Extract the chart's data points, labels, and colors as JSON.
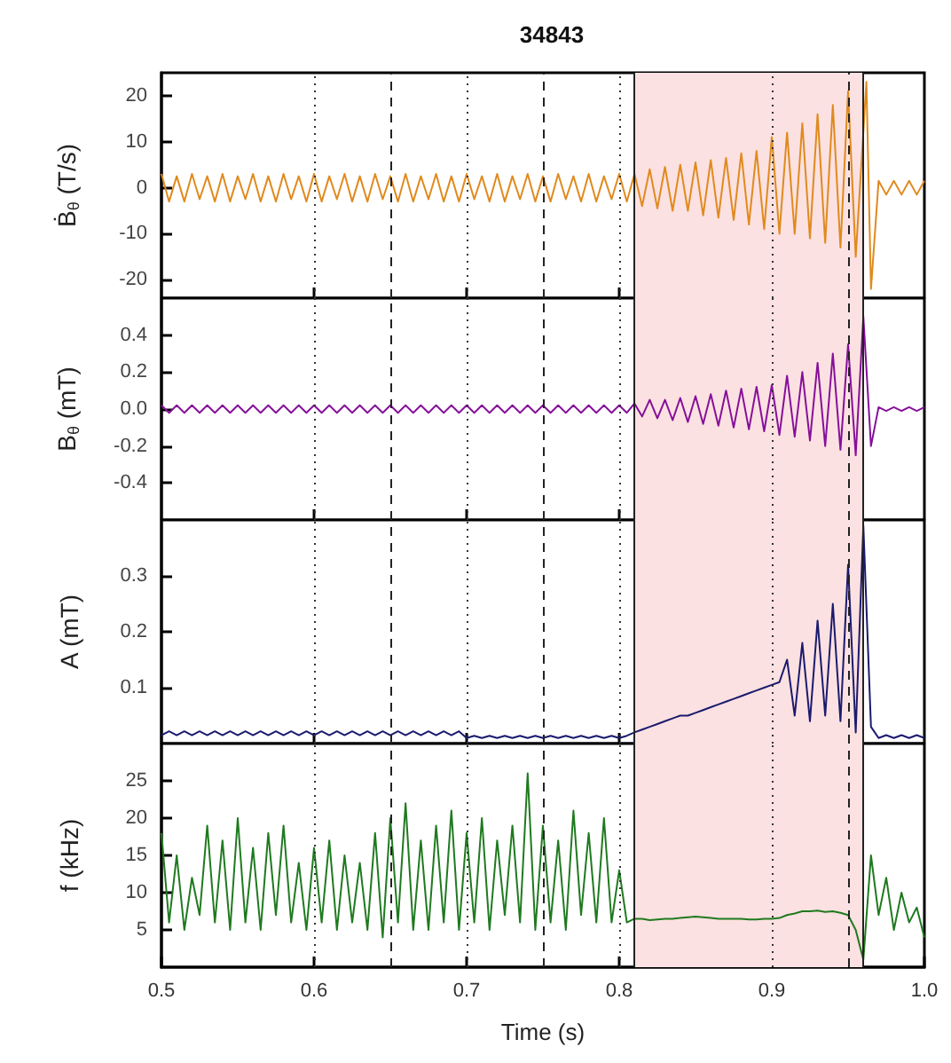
{
  "chart_data": [
    {
      "type": "line",
      "title": "34843",
      "ylabel": "Ḃ$_{θ}$ (T/s)",
      "xlim": [
        0.5,
        1
      ],
      "xticks": [
        0.6,
        0.7,
        0.8,
        0.9
      ],
      "ylim": [
        -24,
        25
      ],
      "yticks": [
        -20,
        -10,
        0,
        10,
        20
      ],
      "grid": "x",
      "tick_labels": "y",
      "x": [
        0.5,
        0.505,
        0.51,
        0.515,
        0.52,
        0.525,
        0.53,
        0.535,
        0.54,
        0.545,
        0.55,
        0.555,
        0.56,
        0.565,
        0.57,
        0.575,
        0.58,
        0.585,
        0.59,
        0.595,
        0.6,
        0.605,
        0.61,
        0.615,
        0.62,
        0.625,
        0.63,
        0.635,
        0.64,
        0.645,
        0.65,
        0.655,
        0.66,
        0.665,
        0.67,
        0.675,
        0.68,
        0.685,
        0.69,
        0.695,
        0.7,
        0.705,
        0.71,
        0.715,
        0.72,
        0.725,
        0.73,
        0.735,
        0.74,
        0.745,
        0.75,
        0.755,
        0.76,
        0.765,
        0.77,
        0.775,
        0.78,
        0.785,
        0.79,
        0.795,
        0.8,
        0.805,
        0.81,
        0.815,
        0.82,
        0.825,
        0.83,
        0.835,
        0.84,
        0.845,
        0.85,
        0.855,
        0.86,
        0.865,
        0.87,
        0.875,
        0.88,
        0.885,
        0.89,
        0.895,
        0.9,
        0.905,
        0.91,
        0.915,
        0.92,
        0.925,
        0.93,
        0.935,
        0.94,
        0.945,
        0.95,
        0.955,
        0.962,
        0.965,
        0.97,
        0.975,
        0.98,
        0.985,
        0.99,
        0.995,
        1.0
      ],
      "series": [
        {
          "color": "#e08a1e",
          "values": [
            3,
            -3,
            2.5,
            -3,
            3,
            -2.5,
            2.5,
            -3,
            3,
            -3,
            2.5,
            -2.5,
            3,
            -3,
            2.5,
            -3,
            3,
            -2.5,
            2.5,
            -3,
            3,
            -3,
            2.5,
            -2.5,
            3,
            -3,
            2.5,
            -3,
            3,
            -2.5,
            2.5,
            -3,
            3,
            -3,
            2.5,
            -2.5,
            3,
            -3,
            2.5,
            -3,
            3,
            -2.5,
            2.5,
            -3,
            3,
            -3,
            2.5,
            -2.5,
            3,
            -3,
            2.5,
            -3,
            3,
            -2.5,
            2.5,
            -3,
            3,
            -3,
            2.5,
            -2.5,
            3,
            -3,
            3,
            -4,
            4,
            -4.5,
            4.5,
            -5,
            5,
            -5,
            5.5,
            -6,
            6,
            -6.5,
            6.5,
            -7,
            7.5,
            -8,
            8,
            -9,
            11,
            -10,
            12,
            -10,
            14,
            -11,
            16,
            -12,
            18,
            -13,
            21,
            -15,
            23,
            -22,
            1.5,
            -1.5,
            1.5,
            -1.5,
            1.5,
            -1.5,
            1.5
          ]
        }
      ],
      "bands": [
        {
          "axis": "x",
          "from": 0.81,
          "to": 0.96,
          "color": "#fbe1e1"
        }
      ],
      "ref_lines": [
        {
          "axis": "x",
          "value": 0.65,
          "line_style": "dashed"
        },
        {
          "axis": "x",
          "value": 0.75,
          "line_style": "dashed"
        },
        {
          "axis": "x",
          "value": 0.95,
          "line_style": "dashed"
        },
        {
          "axis": "x",
          "value": 0.81,
          "line_style": "solid"
        },
        {
          "axis": "x",
          "value": 0.96,
          "line_style": "solid"
        }
      ]
    },
    {
      "type": "line",
      "ylabel": "B$_{θ}$ (mT)",
      "xlim": [
        0.5,
        1
      ],
      "xticks": [
        0.6,
        0.7,
        0.8,
        0.9
      ],
      "ylim": [
        -0.6,
        0.6
      ],
      "yticks": [
        -0.4,
        -0.2,
        {
          "value": 0,
          "label": "0.0"
        },
        0.2,
        0.4
      ],
      "grid": "x",
      "tick_labels": "y",
      "x": [
        0.5,
        0.505,
        0.51,
        0.515,
        0.52,
        0.525,
        0.53,
        0.535,
        0.54,
        0.545,
        0.55,
        0.555,
        0.56,
        0.565,
        0.57,
        0.575,
        0.58,
        0.585,
        0.59,
        0.595,
        0.6,
        0.605,
        0.61,
        0.615,
        0.62,
        0.625,
        0.63,
        0.635,
        0.64,
        0.645,
        0.65,
        0.655,
        0.66,
        0.665,
        0.67,
        0.675,
        0.68,
        0.685,
        0.69,
        0.695,
        0.7,
        0.705,
        0.71,
        0.715,
        0.72,
        0.725,
        0.73,
        0.735,
        0.74,
        0.745,
        0.75,
        0.755,
        0.76,
        0.765,
        0.77,
        0.775,
        0.78,
        0.785,
        0.79,
        0.795,
        0.8,
        0.805,
        0.81,
        0.815,
        0.82,
        0.825,
        0.83,
        0.835,
        0.84,
        0.845,
        0.85,
        0.855,
        0.86,
        0.865,
        0.87,
        0.875,
        0.88,
        0.885,
        0.89,
        0.895,
        0.9,
        0.905,
        0.91,
        0.915,
        0.92,
        0.925,
        0.93,
        0.935,
        0.94,
        0.945,
        0.95,
        0.955,
        0.96,
        0.965,
        0.97,
        0.975,
        0.98,
        0.985,
        0.99,
        0.995,
        1.0
      ],
      "series": [
        {
          "color": "#86109a",
          "values": [
            0.02,
            -0.02,
            0.02,
            -0.02,
            0.02,
            -0.02,
            0.02,
            -0.02,
            0.02,
            -0.02,
            0.02,
            -0.02,
            0.02,
            -0.02,
            0.02,
            -0.02,
            0.02,
            -0.02,
            0.02,
            -0.02,
            0.02,
            -0.02,
            0.02,
            -0.02,
            0.02,
            -0.02,
            0.02,
            -0.02,
            0.02,
            -0.02,
            0.02,
            -0.02,
            0.02,
            -0.02,
            0.02,
            -0.02,
            0.02,
            -0.02,
            0.02,
            -0.02,
            0.02,
            -0.02,
            0.02,
            -0.02,
            0.02,
            -0.02,
            0.02,
            -0.02,
            0.02,
            -0.02,
            0.02,
            -0.02,
            0.02,
            -0.02,
            0.02,
            -0.02,
            0.02,
            -0.02,
            0.02,
            -0.02,
            0.02,
            -0.02,
            0.03,
            -0.04,
            0.05,
            -0.05,
            0.05,
            -0.06,
            0.06,
            -0.07,
            0.07,
            -0.08,
            0.08,
            -0.09,
            0.1,
            -0.1,
            0.11,
            -0.11,
            0.12,
            -0.12,
            0.13,
            -0.14,
            0.18,
            -0.15,
            0.2,
            -0.17,
            0.25,
            -0.2,
            0.3,
            -0.22,
            0.35,
            -0.25,
            0.5,
            -0.2,
            0.01,
            -0.01,
            0.01,
            -0.01,
            0.01,
            -0.01,
            0.01
          ]
        }
      ],
      "bands": [
        {
          "axis": "x",
          "from": 0.81,
          "to": 0.96,
          "color": "#fbe1e1"
        }
      ],
      "ref_lines": [
        {
          "axis": "x",
          "value": 0.65,
          "line_style": "dashed"
        },
        {
          "axis": "x",
          "value": 0.75,
          "line_style": "dashed"
        },
        {
          "axis": "x",
          "value": 0.95,
          "line_style": "dashed"
        },
        {
          "axis": "x",
          "value": 0.81,
          "line_style": "solid"
        },
        {
          "axis": "x",
          "value": 0.96,
          "line_style": "solid"
        }
      ]
    },
    {
      "type": "line",
      "ylabel": "A (mT)",
      "xlim": [
        0.5,
        1
      ],
      "xticks": [
        0.6,
        0.7,
        0.8,
        0.9
      ],
      "ylim": [
        0,
        0.4
      ],
      "yticks": [
        0.1,
        0.2,
        0.3
      ],
      "grid": "x",
      "tick_labels": "y",
      "x": [
        0.5,
        0.505,
        0.51,
        0.515,
        0.52,
        0.525,
        0.53,
        0.535,
        0.54,
        0.545,
        0.55,
        0.555,
        0.56,
        0.565,
        0.57,
        0.575,
        0.58,
        0.585,
        0.59,
        0.595,
        0.6,
        0.605,
        0.61,
        0.615,
        0.62,
        0.625,
        0.63,
        0.635,
        0.64,
        0.645,
        0.65,
        0.655,
        0.66,
        0.665,
        0.67,
        0.675,
        0.68,
        0.685,
        0.69,
        0.695,
        0.7,
        0.705,
        0.71,
        0.715,
        0.72,
        0.725,
        0.73,
        0.735,
        0.74,
        0.745,
        0.75,
        0.755,
        0.76,
        0.765,
        0.77,
        0.775,
        0.78,
        0.785,
        0.79,
        0.795,
        0.8,
        0.805,
        0.81,
        0.815,
        0.82,
        0.825,
        0.83,
        0.835,
        0.84,
        0.845,
        0.85,
        0.855,
        0.86,
        0.865,
        0.87,
        0.875,
        0.88,
        0.885,
        0.89,
        0.895,
        0.9,
        0.905,
        0.91,
        0.915,
        0.92,
        0.925,
        0.93,
        0.935,
        0.94,
        0.945,
        0.95,
        0.955,
        0.96,
        0.965,
        0.97,
        0.975,
        0.98,
        0.985,
        0.99,
        0.995,
        1.0
      ],
      "series": [
        {
          "color": "#1b1a6e",
          "values": [
            0.015,
            0.022,
            0.015,
            0.022,
            0.015,
            0.022,
            0.015,
            0.022,
            0.015,
            0.022,
            0.015,
            0.022,
            0.015,
            0.022,
            0.015,
            0.022,
            0.015,
            0.022,
            0.015,
            0.022,
            0.015,
            0.022,
            0.015,
            0.022,
            0.015,
            0.022,
            0.015,
            0.022,
            0.015,
            0.022,
            0.015,
            0.022,
            0.015,
            0.022,
            0.015,
            0.022,
            0.015,
            0.022,
            0.015,
            0.022,
            0.01,
            0.014,
            0.01,
            0.014,
            0.01,
            0.014,
            0.01,
            0.014,
            0.01,
            0.014,
            0.01,
            0.014,
            0.01,
            0.014,
            0.01,
            0.014,
            0.01,
            0.014,
            0.01,
            0.014,
            0.01,
            0.014,
            0.02,
            0.025,
            0.03,
            0.035,
            0.04,
            0.045,
            0.05,
            0.05,
            0.055,
            0.06,
            0.065,
            0.07,
            0.075,
            0.08,
            0.085,
            0.09,
            0.095,
            0.1,
            0.105,
            0.11,
            0.15,
            0.05,
            0.18,
            0.04,
            0.22,
            0.05,
            0.25,
            0.04,
            0.32,
            0.02,
            0.39,
            0.03,
            0.01,
            0.015,
            0.01,
            0.015,
            0.01,
            0.015,
            0.01
          ]
        }
      ],
      "bands": [
        {
          "axis": "x",
          "from": 0.81,
          "to": 0.96,
          "color": "#fbe1e1"
        }
      ],
      "ref_lines": [
        {
          "axis": "x",
          "value": 0.65,
          "line_style": "dashed"
        },
        {
          "axis": "x",
          "value": 0.75,
          "line_style": "dashed"
        },
        {
          "axis": "x",
          "value": 0.95,
          "line_style": "dashed"
        },
        {
          "axis": "x",
          "value": 0.81,
          "line_style": "solid"
        },
        {
          "axis": "x",
          "value": 0.96,
          "line_style": "solid"
        }
      ]
    },
    {
      "type": "line",
      "xlabel": "Time (s)",
      "ylabel": "f (kHz)",
      "xlim": [
        0.5,
        1
      ],
      "xticks": [
        0.5,
        0.6,
        0.7,
        0.8,
        0.9,
        {
          "value": 1,
          "label": "1.0"
        }
      ],
      "ylim": [
        0,
        30
      ],
      "yticks": [
        5,
        10,
        15,
        20,
        25
      ],
      "grid": "x",
      "x": [
        0.5,
        0.505,
        0.51,
        0.515,
        0.52,
        0.525,
        0.53,
        0.535,
        0.54,
        0.545,
        0.55,
        0.555,
        0.56,
        0.565,
        0.57,
        0.575,
        0.58,
        0.585,
        0.59,
        0.595,
        0.6,
        0.605,
        0.61,
        0.615,
        0.62,
        0.625,
        0.63,
        0.635,
        0.64,
        0.645,
        0.65,
        0.655,
        0.66,
        0.665,
        0.67,
        0.675,
        0.68,
        0.685,
        0.69,
        0.695,
        0.7,
        0.705,
        0.71,
        0.715,
        0.72,
        0.725,
        0.73,
        0.735,
        0.74,
        0.745,
        0.75,
        0.755,
        0.76,
        0.765,
        0.77,
        0.775,
        0.78,
        0.785,
        0.79,
        0.795,
        0.8,
        0.805,
        0.81,
        0.815,
        0.82,
        0.825,
        0.83,
        0.835,
        0.84,
        0.845,
        0.85,
        0.855,
        0.86,
        0.865,
        0.87,
        0.875,
        0.88,
        0.885,
        0.89,
        0.895,
        0.9,
        0.905,
        0.91,
        0.915,
        0.92,
        0.925,
        0.93,
        0.935,
        0.94,
        0.945,
        0.95,
        0.955,
        0.96,
        0.965,
        0.97,
        0.975,
        0.98,
        0.985,
        0.99,
        0.995,
        1.0
      ],
      "series": [
        {
          "color": "#1f7a1f",
          "values": [
            18,
            6,
            15,
            5,
            12,
            7,
            19,
            6,
            17,
            5,
            20,
            6,
            16,
            5,
            18,
            7,
            19,
            6,
            14,
            5,
            16,
            6,
            17,
            5,
            15,
            6,
            14,
            5,
            18,
            4,
            20,
            6,
            22,
            5,
            17,
            5,
            19,
            6,
            21,
            5,
            18,
            6,
            20,
            5,
            17,
            7,
            19,
            6,
            26,
            5,
            19,
            6,
            17,
            5,
            21,
            7,
            18,
            6,
            20,
            6,
            13,
            6,
            6.5,
            6.5,
            6.3,
            6.4,
            6.5,
            6.5,
            6.6,
            6.7,
            6.8,
            6.7,
            6.6,
            6.5,
            6.5,
            6.5,
            6.5,
            6.4,
            6.4,
            6.5,
            6.5,
            6.6,
            7,
            7.2,
            7.5,
            7.5,
            7.6,
            7.4,
            7.5,
            7.3,
            7,
            5,
            1,
            15,
            7,
            12,
            5,
            10,
            6,
            8,
            4
          ]
        }
      ],
      "bands": [
        {
          "axis": "x",
          "from": 0.81,
          "to": 0.96,
          "color": "#fbe1e1"
        }
      ],
      "ref_lines": [
        {
          "axis": "x",
          "value": 0.65,
          "line_style": "dashed"
        },
        {
          "axis": "x",
          "value": 0.75,
          "line_style": "dashed"
        },
        {
          "axis": "x",
          "value": 0.95,
          "line_style": "dashed"
        },
        {
          "axis": "x",
          "value": 0.81,
          "line_style": "solid"
        },
        {
          "axis": "x",
          "value": 0.96,
          "line_style": "solid"
        }
      ]
    }
  ]
}
